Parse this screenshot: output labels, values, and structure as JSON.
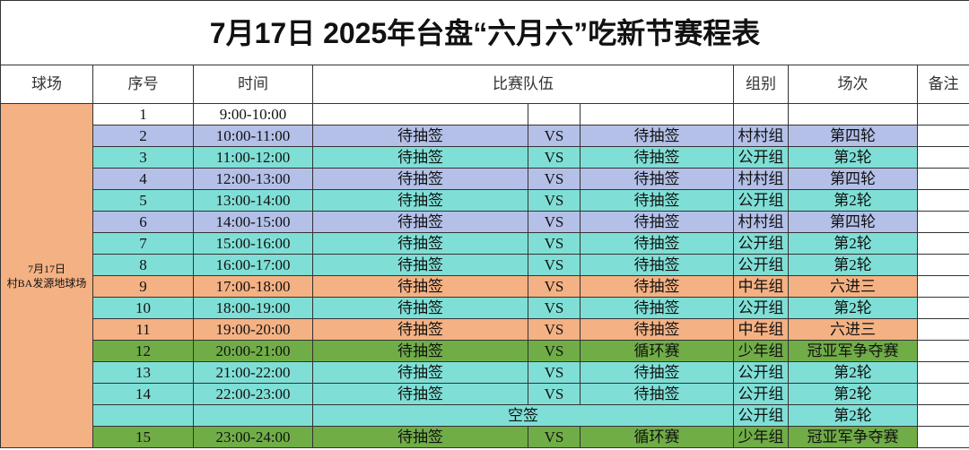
{
  "title": "7月17日  2025年台盘“六月六”吃新节赛程表",
  "headers": {
    "venue": "球场",
    "seq": "序号",
    "time": "时间",
    "teams": "比赛队伍",
    "group": "组别",
    "round": "场次",
    "note": "备注"
  },
  "venue": {
    "date": "7月17日",
    "name": "村BA发源地球场",
    "color": "#f4b183"
  },
  "rows": [
    {
      "seq": "1",
      "time": "9:00-10:00",
      "color": "#ffffff"
    },
    {
      "seq": "2",
      "time": "10:00-11:00",
      "team1": "待抽签",
      "vs": "VS",
      "team2": "待抽签",
      "group": "村村组",
      "round": "第四轮",
      "color": "#b4c0e8"
    },
    {
      "seq": "3",
      "time": "11:00-12:00",
      "team1": "待抽签",
      "vs": "VS",
      "team2": "待抽签",
      "group": "公开组",
      "round": "第2轮",
      "color": "#7fdfd6"
    },
    {
      "seq": "4",
      "time": "12:00-13:00",
      "team1": "待抽签",
      "vs": "VS",
      "team2": "待抽签",
      "group": "村村组",
      "round": "第四轮",
      "color": "#b4c0e8"
    },
    {
      "seq": "5",
      "time": "13:00-14:00",
      "team1": "待抽签",
      "vs": "VS",
      "team2": "待抽签",
      "group": "公开组",
      "round": "第2轮",
      "color": "#7fdfd6"
    },
    {
      "seq": "6",
      "time": "14:00-15:00",
      "team1": "待抽签",
      "vs": "VS",
      "team2": "待抽签",
      "group": "村村组",
      "round": "第四轮",
      "color": "#b4c0e8"
    },
    {
      "seq": "7",
      "time": "15:00-16:00",
      "team1": "待抽签",
      "vs": "VS",
      "team2": "待抽签",
      "group": "公开组",
      "round": "第2轮",
      "color": "#7fdfd6"
    },
    {
      "seq": "8",
      "time": "16:00-17:00",
      "team1": "待抽签",
      "vs": "VS",
      "team2": "待抽签",
      "group": "公开组",
      "round": "第2轮",
      "color": "#7fdfd6"
    },
    {
      "seq": "9",
      "time": "17:00-18:00",
      "team1": "待抽签",
      "vs": "VS",
      "team2": "待抽签",
      "group": "中年组",
      "round": "六进三",
      "color": "#f4b183"
    },
    {
      "seq": "10",
      "time": "18:00-19:00",
      "team1": "待抽签",
      "vs": "VS",
      "team2": "待抽签",
      "group": "公开组",
      "round": "第2轮",
      "color": "#7fdfd6"
    },
    {
      "seq": "11",
      "time": "19:00-20:00",
      "team1": "待抽签",
      "vs": "VS",
      "team2": "待抽签",
      "group": "中年组",
      "round": "六进三",
      "color": "#f4b183"
    },
    {
      "seq": "12",
      "time": "20:00-21:00",
      "team1": "待抽签",
      "vs": "VS",
      "team2": "循环赛",
      "group": "少年组",
      "round": "冠亚军争夺赛",
      "color": "#70ad47"
    },
    {
      "seq": "13",
      "time": "21:00-22:00",
      "team1": "待抽签",
      "vs": "VS",
      "team2": "待抽签",
      "group": "公开组",
      "round": "第2轮",
      "color": "#7fdfd6"
    },
    {
      "seq": "14",
      "time": "22:00-23:00",
      "team1": "待抽签",
      "vs": "VS",
      "team2": "待抽签",
      "group": "公开组",
      "round": "第2轮",
      "color": "#7fdfd6"
    },
    {
      "match": "空签",
      "group": "公开组",
      "round": "第2轮",
      "color": "#7fdfd6"
    },
    {
      "seq": "15",
      "time": "23:00-24:00",
      "team1": "待抽签",
      "vs": "VS",
      "team2": "循环赛",
      "group": "少年组",
      "round": "冠亚军争夺赛",
      "color": "#70ad47"
    }
  ]
}
